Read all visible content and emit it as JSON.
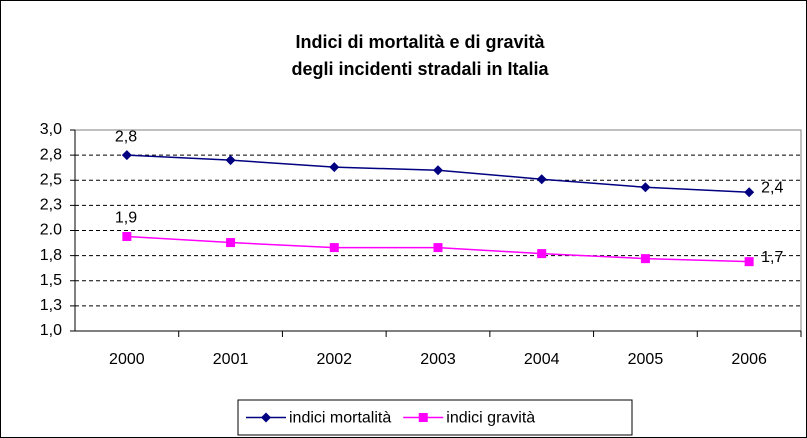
{
  "chart_data": {
    "type": "line",
    "title": "Indici di mortalità e di gravità",
    "subtitle": "degli incidenti stradali in Italia",
    "categories": [
      "2000",
      "2001",
      "2002",
      "2003",
      "2004",
      "2005",
      "2006"
    ],
    "series": [
      {
        "name": "indici mortalità",
        "color": "#000080",
        "marker": "diamond",
        "values": [
          2.75,
          2.7,
          2.63,
          2.6,
          2.51,
          2.43,
          2.38
        ],
        "value_labels": [
          "2,8",
          null,
          null,
          null,
          null,
          null,
          "2,4"
        ]
      },
      {
        "name": "indici gravità",
        "color": "#ff00ff",
        "marker": "square",
        "values": [
          1.94,
          1.88,
          1.83,
          1.83,
          1.77,
          1.72,
          1.69
        ],
        "value_labels": [
          "1,9",
          null,
          null,
          null,
          null,
          null,
          "1,7"
        ]
      }
    ],
    "ylim": [
      1.0,
      3.0
    ],
    "yticks": [
      {
        "value": 1.0,
        "label": "1,0"
      },
      {
        "value": 1.25,
        "label": "1,3"
      },
      {
        "value": 1.5,
        "label": "1,5"
      },
      {
        "value": 1.75,
        "label": "1,8"
      },
      {
        "value": 2.0,
        "label": "2.0"
      },
      {
        "value": 2.25,
        "label": "2,3"
      },
      {
        "value": 2.5,
        "label": "2,5"
      },
      {
        "value": 2.75,
        "label": "2,8"
      },
      {
        "value": 3.0,
        "label": "3,0"
      }
    ],
    "grid": true,
    "legend": "bottom"
  }
}
